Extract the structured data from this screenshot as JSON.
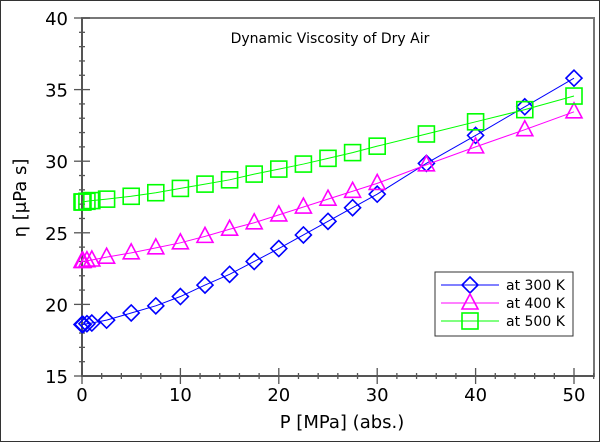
{
  "chart_data": {
    "type": "line",
    "title": "Dynamic Viscosity of Dry Air",
    "xlabel": "P [MPa] (abs.)",
    "ylabel": "η [μPa s]",
    "xlim": [
      0,
      52
    ],
    "ylim": [
      15,
      40
    ],
    "xticks": [
      0,
      10,
      20,
      30,
      40,
      50
    ],
    "yticks": [
      15,
      20,
      25,
      30,
      35,
      40
    ],
    "grid": false,
    "legend_position": "lower-right",
    "x": [
      0,
      0.1,
      0.5,
      1,
      2.5,
      5,
      7.5,
      10,
      12.5,
      15,
      17.5,
      20,
      22.5,
      25,
      27.5,
      30,
      35,
      40,
      45,
      50
    ],
    "series": [
      {
        "name": "at 300 K",
        "color": "#0000ff",
        "marker": "diamond",
        "values": [
          18.6,
          18.6,
          18.65,
          18.7,
          18.9,
          19.4,
          19.9,
          20.55,
          21.35,
          22.1,
          23.0,
          23.9,
          24.85,
          25.8,
          26.75,
          27.7,
          29.85,
          31.8,
          33.8,
          35.8
        ]
      },
      {
        "name": "at 400 K",
        "color": "#ff00ff",
        "marker": "triangle",
        "values": [
          23.0,
          23.0,
          23.05,
          23.1,
          23.3,
          23.6,
          23.95,
          24.3,
          24.75,
          25.25,
          25.7,
          26.25,
          26.8,
          27.35,
          27.9,
          28.45,
          29.75,
          31.0,
          32.2,
          33.45
        ]
      },
      {
        "name": "at 500 K",
        "color": "#00ff00",
        "marker": "square",
        "values": [
          27.15,
          27.15,
          27.2,
          27.25,
          27.35,
          27.55,
          27.8,
          28.1,
          28.4,
          28.7,
          29.1,
          29.45,
          29.8,
          30.2,
          30.6,
          31.05,
          31.9,
          32.75,
          33.6,
          34.55
        ]
      }
    ]
  }
}
